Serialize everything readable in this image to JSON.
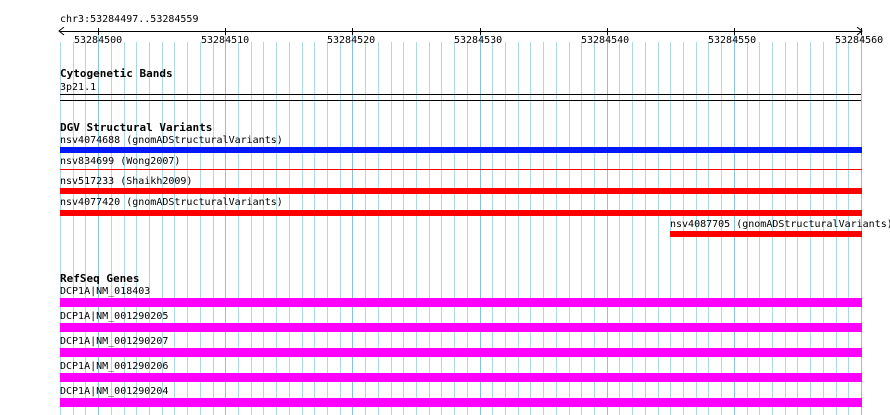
{
  "locus": "chr3:53284497..53284559",
  "ruler": {
    "ticks": [
      "53284500",
      "53284510",
      "53284520",
      "53284530",
      "53284540",
      "53284550",
      "53284560"
    ]
  },
  "tracks": {
    "cytobands": {
      "title": "Cytogenetic Bands",
      "band": "3p21.1"
    },
    "dgv": {
      "title": "DGV Structural Variants",
      "features": [
        {
          "label": "nsv4074688 (gnomADStructuralVariants)",
          "color": "#0018f8"
        },
        {
          "label": "nsv834699 (Wong2007)",
          "color": "#ff0000"
        },
        {
          "label": "nsv517233 (Shaikh2009)",
          "color": "#ff0000"
        },
        {
          "label": "nsv4077420 (gnomADStructuralVariants)",
          "color": "#ff0000"
        },
        {
          "label": "nsv4087705 (gnomADStructuralVariants)",
          "color": "#ff0000"
        }
      ]
    },
    "refseq": {
      "title": "RefSeq Genes",
      "features": [
        {
          "label": "DCP1A|NM_018403",
          "color": "#ff00ff"
        },
        {
          "label": "DCP1A|NM_001290205",
          "color": "#ff00ff"
        },
        {
          "label": "DCP1A|NM_001290207",
          "color": "#ff00ff"
        },
        {
          "label": "DCP1A|NM_001290206",
          "color": "#ff00ff"
        },
        {
          "label": "DCP1A|NM_001290204",
          "color": "#ff00ff"
        }
      ]
    }
  },
  "colors": {
    "grid": "#add8e6",
    "major_grid": "#87c3dd"
  }
}
